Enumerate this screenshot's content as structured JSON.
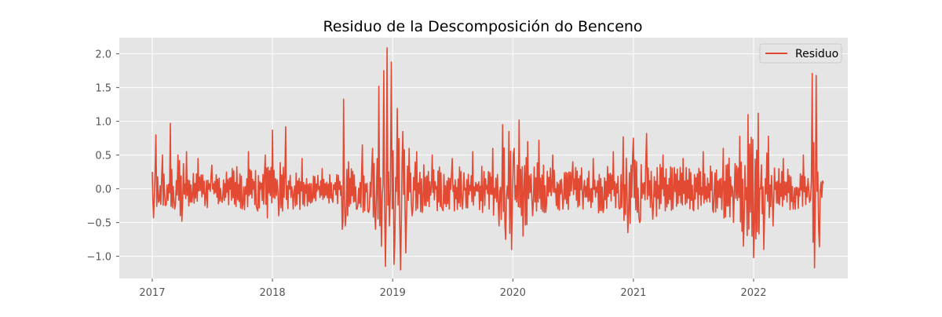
{
  "chart_data": {
    "type": "line",
    "title": "Residuo de la Descomposición do Benceno",
    "xlabel": "",
    "ylabel": "",
    "x_range": [
      "2016-09-23",
      "2022-10-14"
    ],
    "ylim": [
      -1.33,
      2.24
    ],
    "x_ticks": [
      {
        "date": "2017-01-01",
        "label": "2017"
      },
      {
        "date": "2018-01-01",
        "label": "2018"
      },
      {
        "date": "2019-01-01",
        "label": "2019"
      },
      {
        "date": "2020-01-01",
        "label": "2020"
      },
      {
        "date": "2021-01-01",
        "label": "2021"
      },
      {
        "date": "2022-01-01",
        "label": "2022"
      }
    ],
    "y_ticks": [
      {
        "value": -1.0,
        "label": "−1.0"
      },
      {
        "value": -0.5,
        "label": "−0.5"
      },
      {
        "value": 0.0,
        "label": "0.0"
      },
      {
        "value": 0.5,
        "label": "0.5"
      },
      {
        "value": 1.0,
        "label": "1.0"
      },
      {
        "value": 1.5,
        "label": "1.5"
      },
      {
        "value": 2.0,
        "label": "2.0"
      }
    ],
    "grid": true,
    "legend_position": "top-right",
    "colors": {
      "background": "#e5e5e5",
      "grid": "#ffffff",
      "series": "#e24a33",
      "tick_text": "#555555"
    },
    "series": [
      {
        "name": "Residuo",
        "x": [
          "2017-01-01",
          "2017-01-05",
          "2017-01-12",
          "2017-01-20",
          "2017-02-01",
          "2017-02-10",
          "2017-02-25",
          "2017-03-10",
          "2017-03-20",
          "2017-04-01",
          "2017-04-15",
          "2017-05-01",
          "2017-05-20",
          "2017-06-10",
          "2017-07-01",
          "2017-08-01",
          "2017-09-01",
          "2017-10-01",
          "2017-10-20",
          "2017-11-15",
          "2017-12-10",
          "2018-01-01",
          "2018-01-20",
          "2018-02-10",
          "2018-03-05",
          "2018-04-01",
          "2018-05-01",
          "2018-06-01",
          "2018-07-01",
          "2018-07-20",
          "2018-08-01",
          "2018-08-05",
          "2018-08-10",
          "2018-08-20",
          "2018-09-15",
          "2018-10-01",
          "2018-10-20",
          "2018-11-01",
          "2018-11-10",
          "2018-11-20",
          "2018-11-28",
          "2018-12-05",
          "2018-12-10",
          "2018-12-15",
          "2018-12-22",
          "2018-12-28",
          "2019-01-05",
          "2019-01-15",
          "2019-01-25",
          "2019-02-01",
          "2019-02-10",
          "2019-02-20",
          "2019-03-01",
          "2019-03-15",
          "2019-04-01",
          "2019-05-01",
          "2019-06-01",
          "2019-07-01",
          "2019-08-01",
          "2019-09-01",
          "2019-10-01",
          "2019-11-01",
          "2019-11-20",
          "2019-12-01",
          "2019-12-10",
          "2019-12-20",
          "2019-12-28",
          "2020-01-05",
          "2020-01-20",
          "2020-02-01",
          "2020-02-15",
          "2020-03-01",
          "2020-03-20",
          "2020-04-10",
          "2020-05-01",
          "2020-06-01",
          "2020-07-01",
          "2020-08-01",
          "2020-09-01",
          "2020-10-01",
          "2020-11-01",
          "2020-11-20",
          "2020-12-01",
          "2020-12-15",
          "2021-01-01",
          "2021-01-20",
          "2021-02-10",
          "2021-03-01",
          "2021-04-01",
          "2021-05-01",
          "2021-06-01",
          "2021-07-01",
          "2021-08-01",
          "2021-09-01",
          "2021-10-01",
          "2021-11-01",
          "2021-11-20",
          "2021-12-01",
          "2021-12-15",
          "2022-01-01",
          "2022-01-15",
          "2022-02-01",
          "2022-02-15",
          "2022-03-01",
          "2022-04-01",
          "2022-05-01",
          "2022-06-01",
          "2022-06-20",
          "2022-06-28",
          "2022-07-05",
          "2022-07-10",
          "2022-07-20",
          "2022-08-01"
        ],
        "y": [
          0.25,
          -0.43,
          0.8,
          -0.2,
          0.5,
          -0.25,
          0.97,
          -0.3,
          0.5,
          -0.48,
          0.55,
          -0.2,
          0.45,
          -0.25,
          0.35,
          -0.2,
          0.3,
          -0.3,
          0.55,
          -0.3,
          0.5,
          0.87,
          -0.4,
          0.92,
          -0.3,
          0.45,
          -0.2,
          0.3,
          -0.15,
          0.2,
          -0.6,
          1.33,
          -0.55,
          0.4,
          -0.3,
          0.65,
          -0.35,
          0.6,
          -0.6,
          1.52,
          -0.85,
          1.75,
          -1.15,
          2.09,
          -0.55,
          1.88,
          -1.12,
          1.19,
          -1.2,
          0.85,
          -0.95,
          0.6,
          -0.4,
          0.55,
          -0.35,
          0.5,
          -0.3,
          0.45,
          -0.3,
          0.55,
          -0.35,
          0.6,
          -0.55,
          0.95,
          -0.75,
          0.85,
          -0.9,
          0.6,
          1.02,
          -0.7,
          0.7,
          -0.4,
          0.72,
          -0.35,
          0.5,
          -0.3,
          0.4,
          -0.3,
          0.45,
          -0.35,
          0.55,
          -0.3,
          0.77,
          -0.65,
          0.75,
          -0.5,
          0.82,
          -0.45,
          0.5,
          -0.3,
          0.45,
          -0.3,
          0.55,
          -0.35,
          0.6,
          -0.5,
          0.78,
          -0.85,
          1.1,
          -1.02,
          1.12,
          -0.9,
          0.78,
          -0.55,
          0.45,
          -0.3,
          0.5,
          -0.2,
          1.71,
          -1.17,
          1.68,
          -0.86,
          0.08
        ]
      }
    ]
  }
}
